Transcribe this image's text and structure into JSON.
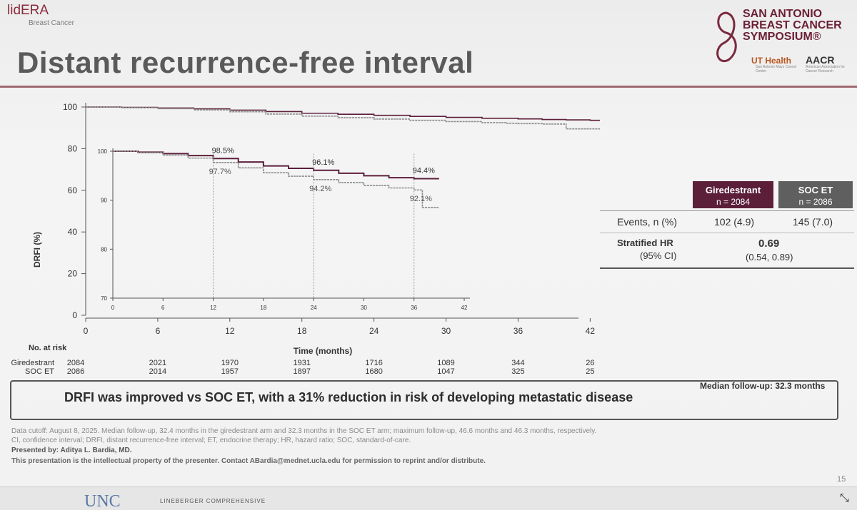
{
  "header": {
    "study_tag": "lidERA",
    "study_sub": "Breast Cancer",
    "title": "Distant recurrence-free interval",
    "sabcs": [
      "SAN ANTONIO",
      "BREAST CANCER",
      "SYMPOSIUM®"
    ],
    "ut_health": "UT Health",
    "ut_sub": "San Antonio Mays Cancer Center",
    "aacr": "AACR",
    "aacr_sub": "American Association for Cancer Research"
  },
  "chart_data": [
    {
      "type": "line",
      "xlabel": "Time (months)",
      "ylabel": "DRFI (%)",
      "xlim": [
        0,
        44
      ],
      "ylim": [
        0,
        100
      ],
      "x_ticks": [
        0,
        6,
        12,
        18,
        24,
        30,
        36,
        42
      ],
      "y_ticks": [
        0,
        20,
        40,
        60,
        80,
        100
      ],
      "series": [
        {
          "name": "Giredestrant",
          "x": [
            0,
            3,
            6,
            9,
            12,
            15,
            18,
            21,
            24,
            27,
            30,
            33,
            36,
            38,
            40,
            42,
            44
          ],
          "y": [
            100,
            99.8,
            99.5,
            99.1,
            98.5,
            97.8,
            97.0,
            96.5,
            96.0,
            95.5,
            95.0,
            94.6,
            94.3,
            94.0,
            93.8,
            93.6,
            93.6
          ]
        },
        {
          "name": "SOC ET",
          "x": [
            0,
            3,
            6,
            9,
            12,
            15,
            18,
            21,
            24,
            27,
            30,
            33,
            35,
            36,
            38,
            40,
            44
          ],
          "y": [
            100,
            99.7,
            99.2,
            98.6,
            97.7,
            96.6,
            95.6,
            94.9,
            94.2,
            93.6,
            93.0,
            92.5,
            92.2,
            92.0,
            91.8,
            89.5,
            89.5
          ]
        }
      ]
    },
    {
      "type": "line",
      "inset": true,
      "xlim": [
        0,
        42
      ],
      "ylim": [
        70,
        100
      ],
      "x_ticks": [
        0,
        6,
        12,
        18,
        24,
        30,
        36,
        42
      ],
      "y_ticks": [
        70,
        80,
        90,
        100
      ],
      "series": [
        {
          "name": "Giredestrant",
          "x": [
            0,
            3,
            6,
            9,
            12,
            15,
            18,
            21,
            24,
            27,
            30,
            33,
            36,
            38,
            39
          ],
          "y": [
            100,
            99.8,
            99.5,
            99.1,
            98.5,
            97.8,
            97.0,
            96.5,
            96.1,
            95.5,
            95.0,
            94.6,
            94.4,
            94.4,
            94.4
          ]
        },
        {
          "name": "SOC ET",
          "x": [
            0,
            3,
            6,
            9,
            12,
            15,
            18,
            21,
            24,
            27,
            30,
            33,
            36,
            37,
            37,
            39
          ],
          "y": [
            100,
            99.7,
            99.2,
            98.6,
            97.7,
            96.6,
            95.6,
            94.9,
            94.2,
            93.6,
            93.0,
            92.5,
            92.1,
            92.1,
            88.5,
            88.5
          ]
        }
      ],
      "annotations": [
        {
          "x": 12,
          "label_top": "98.5%",
          "label_bottom": "97.7%"
        },
        {
          "x": 24,
          "label_top": "96.1%",
          "label_bottom": "94.2%"
        },
        {
          "x": 36,
          "label_top": "94.4%",
          "label_bottom": "92.1%"
        }
      ]
    }
  ],
  "risk_table": {
    "title": "No. at risk",
    "times": [
      0,
      6,
      12,
      18,
      24,
      30,
      36,
      42
    ],
    "rows": [
      {
        "label": "Giredestrant",
        "values": [
          "2084",
          "2021",
          "1970",
          "1931",
          "1716",
          "1089",
          "344",
          "26"
        ]
      },
      {
        "label": "SOC ET",
        "values": [
          "2086",
          "2014",
          "1957",
          "1897",
          "1680",
          "1047",
          "325",
          "25"
        ]
      }
    ]
  },
  "stats": {
    "gir_name": "Giredestrant",
    "gir_n": "n = 2084",
    "soc_name": "SOC ET",
    "soc_n": "n = 2086",
    "events_label": "Events, n (%)",
    "events_gir": "102 (4.9)",
    "events_soc": "145 (7.0)",
    "hr_label": "Stratified HR",
    "ci_label": "(95% CI)",
    "hr_value": "0.69",
    "ci_value": "(0.54, 0.89)",
    "median_fu": "Median follow-up: 32.3 months"
  },
  "key_message": "DRFI was improved vs SOC ET, with a 31% reduction in risk of developing metastatic disease",
  "footnotes": {
    "line1": "Data cutoff: August 8, 2025. Median follow-up, 32.4 months in the giredestrant arm and 32.3 months in the SOC ET arm; maximum follow-up, 46.6 months and 46.3 months, respectively.",
    "line2": "CI, confidence interval; DRFI, distant recurrence-free interval; ET, endocrine therapy; HR, hazard ratio; SOC, standard-of-care.",
    "line3": "Presented by: Aditya L. Bardia, MD.",
    "line4": "This presentation is the intellectual property of the presenter. Contact ABardia@mednet.ucla.edu for permission to reprint and/or distribute."
  },
  "slide_number": "15",
  "bottom_bar": {
    "logo": "UNC",
    "text": "LINEBERGER COMPREHENSIVE"
  },
  "colors": {
    "giredestrant": "#5c1f3a",
    "soc": "#8c8c8c",
    "title_rule": "#a06a72"
  }
}
